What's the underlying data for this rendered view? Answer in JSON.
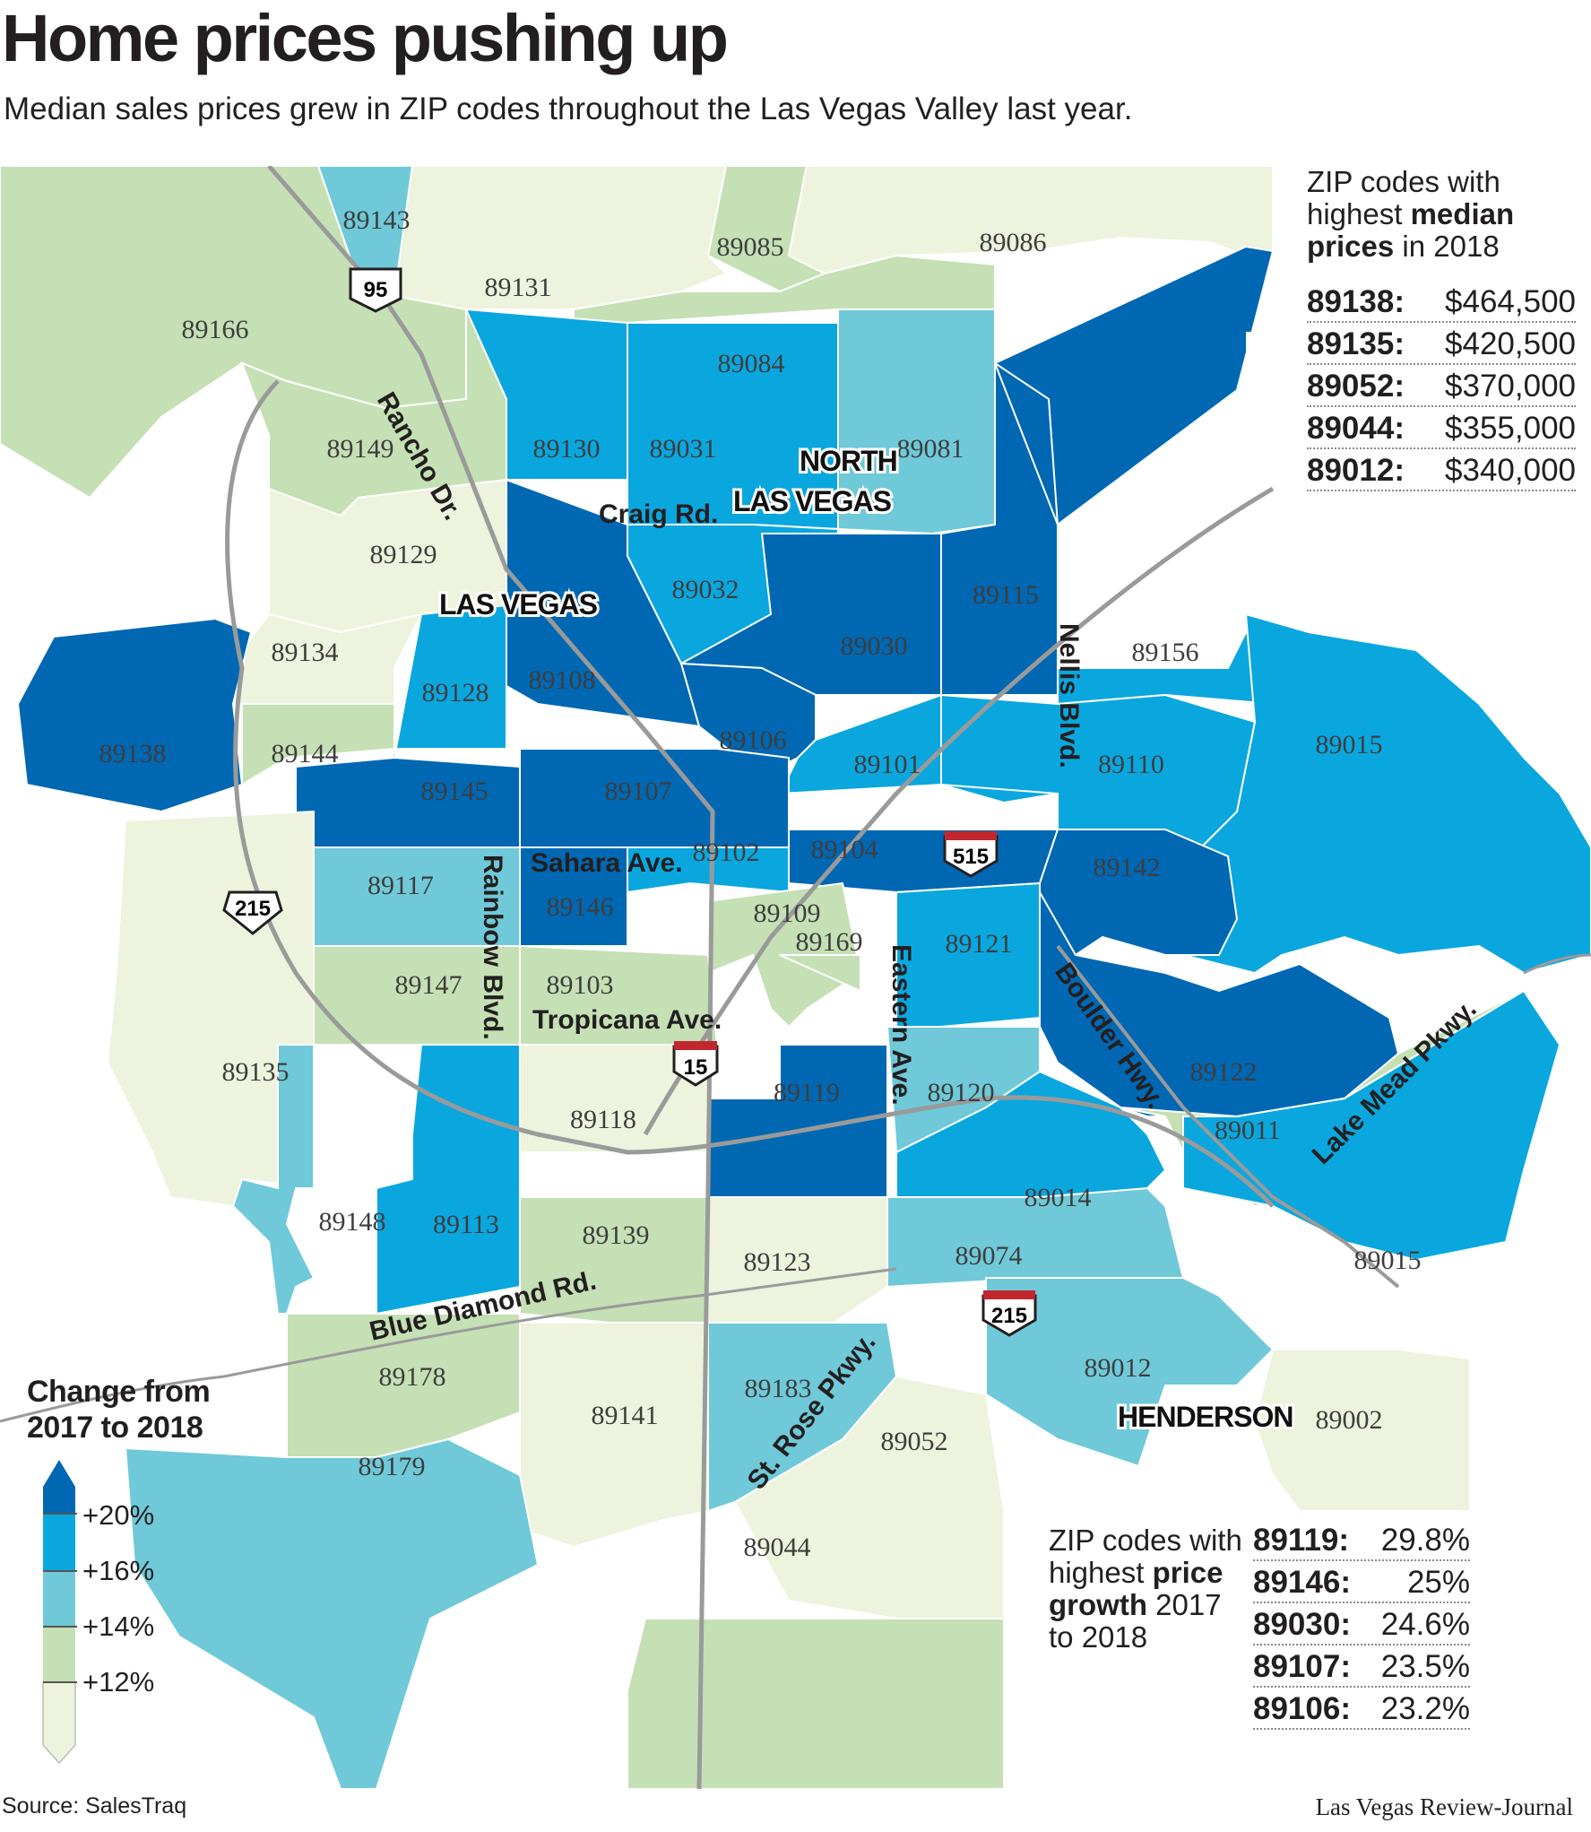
{
  "header": {
    "title": "Home prices pushing up",
    "subtitle": "Median sales prices grew in ZIP codes throughout the Las Vegas Valley last year."
  },
  "colors": {
    "level_12_14": "#c5e0b4",
    "level_under_12": "#edf3dc",
    "level_14_16": "#6fc9d8",
    "level_16_20": "#0aa7df",
    "level_20_plus": "#0068b3"
  },
  "map": {
    "cities": [
      "NORTH",
      "LAS VEGAS",
      "LAS VEGAS",
      "HENDERSON"
    ],
    "roads": [
      "Rancho Dr.",
      "Craig Rd.",
      "Nellis Blvd.",
      "Sahara Ave.",
      "Rainbow Blvd.",
      "Tropicana Ave.",
      "Eastern Ave.",
      "Boulder Hwy.",
      "Lake Mead Pkwy.",
      "Blue Diamond Rd.",
      "St. Rose Pkwy."
    ],
    "highways": [
      "95",
      "215",
      "515",
      "15",
      "215"
    ],
    "zips": [
      {
        "code": "89143",
        "level": "level_14_16"
      },
      {
        "code": "89131",
        "level": "level_under_12"
      },
      {
        "code": "89085",
        "level": "level_12_14"
      },
      {
        "code": "89086",
        "level": "level_under_12"
      },
      {
        "code": "89166",
        "level": "level_12_14"
      },
      {
        "code": "89084",
        "level": "level_12_14"
      },
      {
        "code": "89149",
        "level": "level_12_14"
      },
      {
        "code": "89130",
        "level": "level_16_20"
      },
      {
        "code": "89031",
        "level": "level_16_20"
      },
      {
        "code": "89081",
        "level": "level_14_16"
      },
      {
        "code": "89129",
        "level": "level_under_12"
      },
      {
        "code": "89032",
        "level": "level_16_20"
      },
      {
        "code": "89115",
        "level": "level_20_plus"
      },
      {
        "code": "89134",
        "level": "level_under_12"
      },
      {
        "code": "89030",
        "level": "level_20_plus"
      },
      {
        "code": "89156",
        "level": "level_16_20"
      },
      {
        "code": "89128",
        "level": "level_16_20"
      },
      {
        "code": "89108",
        "level": "level_20_plus"
      },
      {
        "code": "89138",
        "level": "level_20_plus"
      },
      {
        "code": "89144",
        "level": "level_12_14"
      },
      {
        "code": "89106",
        "level": "level_20_plus"
      },
      {
        "code": "89015",
        "level": "level_16_20"
      },
      {
        "code": "89101",
        "level": "level_16_20"
      },
      {
        "code": "89110",
        "level": "level_16_20"
      },
      {
        "code": "89145",
        "level": "level_20_plus"
      },
      {
        "code": "89107",
        "level": "level_20_plus"
      },
      {
        "code": "89102",
        "level": "level_16_20"
      },
      {
        "code": "89104",
        "level": "level_20_plus"
      },
      {
        "code": "89142",
        "level": "level_20_plus"
      },
      {
        "code": "89117",
        "level": "level_14_16"
      },
      {
        "code": "89146",
        "level": "level_20_plus"
      },
      {
        "code": "89109",
        "level": "level_12_14"
      },
      {
        "code": "89169",
        "level": "level_12_14"
      },
      {
        "code": "89121",
        "level": "level_16_20"
      },
      {
        "code": "89147",
        "level": "level_12_14"
      },
      {
        "code": "89103",
        "level": "level_12_14"
      },
      {
        "code": "89135",
        "level": "level_under_12"
      },
      {
        "code": "89122",
        "level": "level_20_plus"
      },
      {
        "code": "89119",
        "level": "level_20_plus"
      },
      {
        "code": "89120",
        "level": "level_14_16"
      },
      {
        "code": "89118",
        "level": "level_under_12"
      },
      {
        "code": "89011",
        "level": "level_12_14"
      },
      {
        "code": "89148",
        "level": "level_14_16"
      },
      {
        "code": "89014",
        "level": "level_16_20"
      },
      {
        "code": "89113",
        "level": "level_16_20"
      },
      {
        "code": "89139",
        "level": "level_12_14"
      },
      {
        "code": "89123",
        "level": "level_under_12"
      },
      {
        "code": "89074",
        "level": "level_14_16"
      },
      {
        "code": "89015",
        "level": "level_16_20"
      },
      {
        "code": "89178",
        "level": "level_12_14"
      },
      {
        "code": "89012",
        "level": "level_14_16"
      },
      {
        "code": "89183",
        "level": "level_14_16"
      },
      {
        "code": "89141",
        "level": "level_under_12"
      },
      {
        "code": "89002",
        "level": "level_under_12"
      },
      {
        "code": "89052",
        "level": "level_under_12"
      },
      {
        "code": "89179",
        "level": "level_14_16"
      },
      {
        "code": "89044",
        "level": "level_12_14"
      }
    ]
  },
  "top_median": {
    "title_pre": "ZIP codes with highest ",
    "title_bold": "median prices",
    "title_post": " in 2018",
    "rows": [
      {
        "zip": "89138:",
        "value": "$464,500"
      },
      {
        "zip": "89135:",
        "value": "$420,500"
      },
      {
        "zip": "89052:",
        "value": "$370,000"
      },
      {
        "zip": "89044:",
        "value": "$355,000"
      },
      {
        "zip": "89012:",
        "value": "$340,000"
      }
    ]
  },
  "top_growth": {
    "title_pre": "ZIP codes with highest ",
    "title_bold": "price growth",
    "title_post": " 2017 to 2018",
    "rows": [
      {
        "zip": "89119:",
        "value": "29.8%"
      },
      {
        "zip": "89146:",
        "value": "25%"
      },
      {
        "zip": "89030:",
        "value": "24.6%"
      },
      {
        "zip": "89107:",
        "value": "23.5%"
      },
      {
        "zip": "89106:",
        "value": "23.2%"
      }
    ]
  },
  "legend": {
    "title_line1": "Change from",
    "title_line2": "2017 to 2018",
    "labels": [
      "+20%",
      "+16%",
      "+14%",
      "+12%"
    ]
  },
  "footer": {
    "source": "Source: SalesTraq",
    "credit": "Las Vegas Review-Journal"
  }
}
